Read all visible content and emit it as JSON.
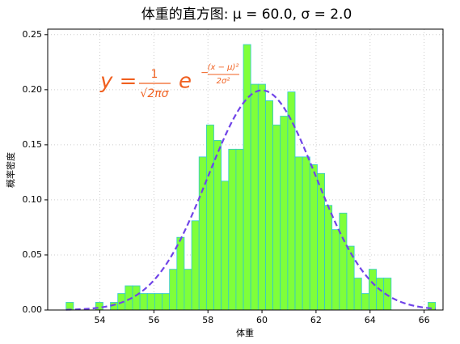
{
  "chart_data": {
    "type": "histogram",
    "title": "体重的直方图: μ = 60.0,  σ = 2.0",
    "xlabel": "体重",
    "ylabel": "概率密度",
    "bins": [
      52.75,
      53.023,
      53.297,
      53.57,
      53.844,
      54.117,
      54.39,
      54.664,
      54.937,
      55.211,
      55.484,
      55.757,
      56.031,
      56.304,
      56.578,
      56.851,
      57.124,
      57.398,
      57.671,
      57.945,
      58.218,
      58.491,
      58.765,
      59.038,
      59.312,
      59.585,
      59.858,
      60.132,
      60.405,
      60.679,
      60.952,
      61.225,
      61.499,
      61.772,
      62.046,
      62.319,
      62.592,
      62.866,
      63.139,
      63.413,
      63.686,
      63.959,
      64.233,
      64.506,
      64.78,
      65.053,
      65.326,
      65.6,
      65.873,
      66.147,
      66.42
    ],
    "values": [
      0.007,
      0,
      0,
      0,
      0.007,
      0,
      0.007,
      0.015,
      0.022,
      0.022,
      0.015,
      0.015,
      0.015,
      0.015,
      0.037,
      0.066,
      0.037,
      0.081,
      0.139,
      0.168,
      0.154,
      0.117,
      0.146,
      0.146,
      0.241,
      0.205,
      0.205,
      0.19,
      0.168,
      0.176,
      0.198,
      0.139,
      0.139,
      0.132,
      0.124,
      0.095,
      0.073,
      0.088,
      0.058,
      0.029,
      0.015,
      0.037,
      0.029,
      0.029,
      0,
      0,
      0,
      0,
      0,
      0.007
    ],
    "color": "#7fff3a",
    "edgecolor": "#30c8d0",
    "curve": {
      "mu": 60,
      "sigma": 2,
      "color": "#7044e8"
    },
    "formula": {
      "lhs": "y =",
      "num": "1",
      "den": "√2πσ",
      "base": "e",
      "exp_sign": "−",
      "exp_num": "(x − μ)²",
      "exp_den": "2σ²",
      "color": "#f06020"
    },
    "xlim": [
      52.07,
      66.7
    ],
    "ylim": [
      0,
      0.255
    ],
    "xticks": [
      54,
      56,
      58,
      60,
      62,
      64,
      66
    ],
    "yticks": [
      {
        "value": 0,
        "label": "0.00"
      },
      {
        "value": 0.05,
        "label": "0.05"
      },
      {
        "value": 0.1,
        "label": "0.10"
      },
      {
        "value": 0.15,
        "label": "0.15"
      },
      {
        "value": 0.2,
        "label": "0.20"
      },
      {
        "value": 0.25,
        "label": "0.25"
      }
    ],
    "grid": true
  }
}
